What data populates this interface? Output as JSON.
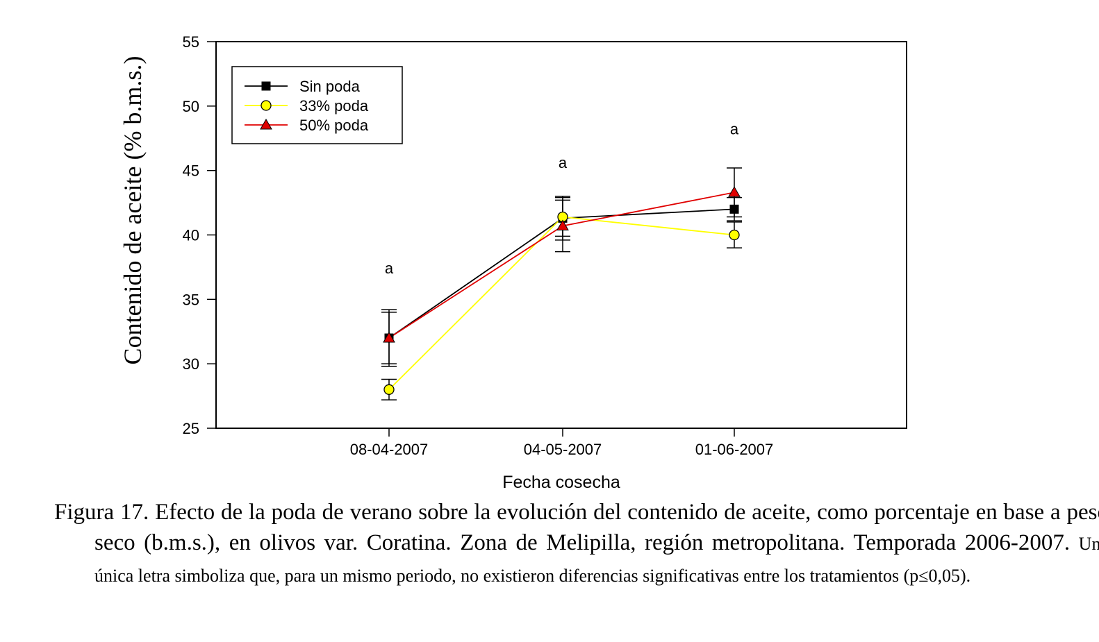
{
  "chart_data": {
    "type": "line",
    "categories": [
      "08-04-2007",
      "04-05-2007",
      "01-06-2007"
    ],
    "xlabel": "Fecha cosecha",
    "ylabel": "Contenido de aceite (% b.m.s.)",
    "ylim": [
      25,
      55
    ],
    "yticks": [
      25,
      30,
      35,
      40,
      45,
      50,
      55
    ],
    "grid": false,
    "legend_position": "top-left",
    "series": [
      {
        "name": "Sin poda",
        "color": "#000000",
        "marker": "square",
        "values": [
          32.0,
          41.3,
          42.0
        ],
        "error": [
          2.2,
          1.7,
          0.9
        ]
      },
      {
        "name": "33% poda",
        "color": "#ffff00",
        "marker": "circle",
        "values": [
          28.0,
          41.4,
          40.0
        ],
        "error": [
          0.8,
          1.5,
          1.0
        ]
      },
      {
        "name": "50% poda",
        "color": "#e00000",
        "marker": "triangle",
        "values": [
          32.0,
          40.7,
          43.3
        ],
        "error": [
          2.0,
          2.0,
          1.9
        ]
      }
    ],
    "annotations": [
      {
        "category": "08-04-2007",
        "y": 37.0,
        "text": "a"
      },
      {
        "category": "04-05-2007",
        "y": 45.2,
        "text": "a"
      },
      {
        "category": "01-06-2007",
        "y": 47.8,
        "text": "a"
      }
    ]
  },
  "caption": {
    "main": "Figura 17. Efecto de la poda de verano sobre la evolución del contenido de aceite, como porcentaje en base a peso seco (b.m.s.), en olivos var. Coratina. Zona de Melipilla, región metropolitana. Temporada 2006-2007.",
    "note": "Una única letra simboliza que, para un mismo periodo, no existieron diferencias significativas entre los tratamientos (p≤0,05)."
  }
}
